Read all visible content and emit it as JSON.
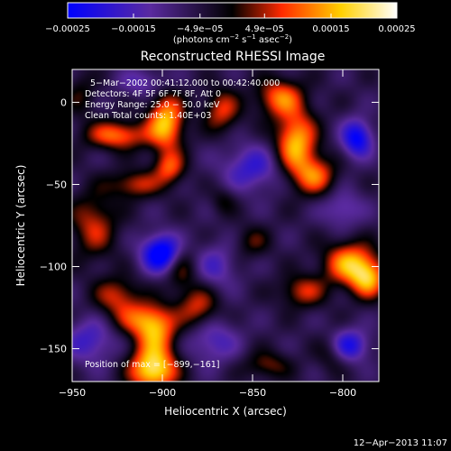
{
  "chart_data": {
    "type": "heatmap",
    "title": "Reconstructed RHESSI Image",
    "xlabel": "Heliocentric X (arcsec)",
    "ylabel": "Heliocentric Y (arcsec)",
    "xlim": [
      -950,
      -780
    ],
    "ylim": [
      -170,
      20
    ],
    "x_ticks": [
      -950,
      -900,
      -850,
      -800
    ],
    "x_tick_labels": [
      "−950",
      "−900",
      "−850",
      "−800"
    ],
    "y_ticks": [
      0,
      -50,
      -100,
      -150
    ],
    "y_tick_labels": [
      "0",
      "−50",
      "−100",
      "−150"
    ],
    "colorbar": {
      "range": [
        -0.00025,
        0.00025
      ],
      "ticks": [
        -0.00025,
        -0.00015,
        -4.9e-05,
        4.9e-05,
        0.00015,
        0.00025
      ],
      "tick_labels": [
        "−0.00025",
        "−0.00015",
        "−4.9e−05",
        "4.9e−05",
        "0.00015",
        "0.00025"
      ],
      "units_main": "(photons cm",
      "units_exp1": "−2",
      "units_mid": " s",
      "units_exp2": "−1",
      "units_tail": " asec",
      "units_exp3": "−2",
      "units_close": ")",
      "colors": [
        "#0000ff",
        "#5a2aa0",
        "#000000",
        "#ff2a00",
        "#ffd000",
        "#ffffff"
      ]
    },
    "annotations": [
      "5−Mar−2002 00:41:12.000 to 00:42:40.000",
      "Detectors: 4F 5F 6F 7F 8F, Att 0",
      "Energy Range: 25.0 − 50.0 keV",
      "Clean    Total counts: 1.40E+03"
    ],
    "position_label": "Position of max = [−899,−161]",
    "timestamp": "12−Apr−2013 11:07",
    "sources": [
      {
        "x": -905,
        "y": -163,
        "sx": 9,
        "sy": 9,
        "v": 0.00026
      },
      {
        "x": -904,
        "y": -140,
        "sx": 8,
        "sy": 10,
        "v": 0.00018
      },
      {
        "x": -898,
        "y": -12,
        "sx": 7,
        "sy": 12,
        "v": 0.00022
      },
      {
        "x": -896,
        "y": -40,
        "sx": 6,
        "sy": 7,
        "v": 0.00014
      },
      {
        "x": -925,
        "y": -20,
        "sx": 12,
        "sy": 6,
        "v": 0.00017
      },
      {
        "x": -915,
        "y": -50,
        "sx": 10,
        "sy": 6,
        "v": 0.00012
      },
      {
        "x": -938,
        "y": -75,
        "sx": 9,
        "sy": 14,
        "v": 0.00012
      },
      {
        "x": -925,
        "y": -118,
        "sx": 9,
        "sy": 8,
        "v": 0.00012
      },
      {
        "x": -913,
        "y": -132,
        "sx": 11,
        "sy": 7,
        "v": 0.00011
      },
      {
        "x": -880,
        "y": -125,
        "sx": 8,
        "sy": 9,
        "v": 0.00013
      },
      {
        "x": -890,
        "y": -100,
        "sx": 6,
        "sy": 10,
        "v": 0.0001
      },
      {
        "x": -867,
        "y": -5,
        "sx": 7,
        "sy": 9,
        "v": 0.00013
      },
      {
        "x": -835,
        "y": 3,
        "sx": 9,
        "sy": 8,
        "v": 0.00016
      },
      {
        "x": -826,
        "y": -25,
        "sx": 8,
        "sy": 14,
        "v": 0.00022
      },
      {
        "x": -815,
        "y": -45,
        "sx": 8,
        "sy": 8,
        "v": 0.00015
      },
      {
        "x": -796,
        "y": -98,
        "sx": 10,
        "sy": 9,
        "v": 0.0002
      },
      {
        "x": -786,
        "y": -108,
        "sx": 7,
        "sy": 8,
        "v": 0.00018
      },
      {
        "x": -822,
        "y": -115,
        "sx": 9,
        "sy": 7,
        "v": 0.00012
      },
      {
        "x": -850,
        "y": -85,
        "sx": 7,
        "sy": 7,
        "v": 7e-05
      },
      {
        "x": -842,
        "y": -160,
        "sx": 9,
        "sy": 6,
        "v": 9e-05
      },
      {
        "x": -806,
        "y": -152,
        "sx": 6,
        "sy": 8,
        "v": 8e-05
      },
      {
        "x": -866,
        "y": -60,
        "sx": 5,
        "sy": 6,
        "v": 6e-05
      },
      {
        "x": -945,
        "y": 5,
        "sx": 6,
        "sy": 10,
        "v": 6e-05
      },
      {
        "x": -900,
        "y": -92,
        "sx": 8,
        "sy": 8,
        "v": -0.00024
      },
      {
        "x": -792,
        "y": -22,
        "sx": 6,
        "sy": 8,
        "v": -0.00019
      },
      {
        "x": -797,
        "y": -148,
        "sx": 8,
        "sy": 7,
        "v": -0.00016
      },
      {
        "x": -850,
        "y": -40,
        "sx": 12,
        "sy": 10,
        "v": -0.00012
      },
      {
        "x": -872,
        "y": -145,
        "sx": 10,
        "sy": 10,
        "v": -0.0001
      },
      {
        "x": -940,
        "y": -145,
        "sx": 10,
        "sy": 10,
        "v": -0.00011
      },
      {
        "x": -910,
        "y": 12,
        "sx": 10,
        "sy": 6,
        "v": -8e-05
      },
      {
        "x": -800,
        "y": -65,
        "sx": 8,
        "sy": 8,
        "v": -9e-05
      },
      {
        "x": -870,
        "y": -100,
        "sx": 8,
        "sy": 10,
        "v": -9e-05
      }
    ]
  }
}
